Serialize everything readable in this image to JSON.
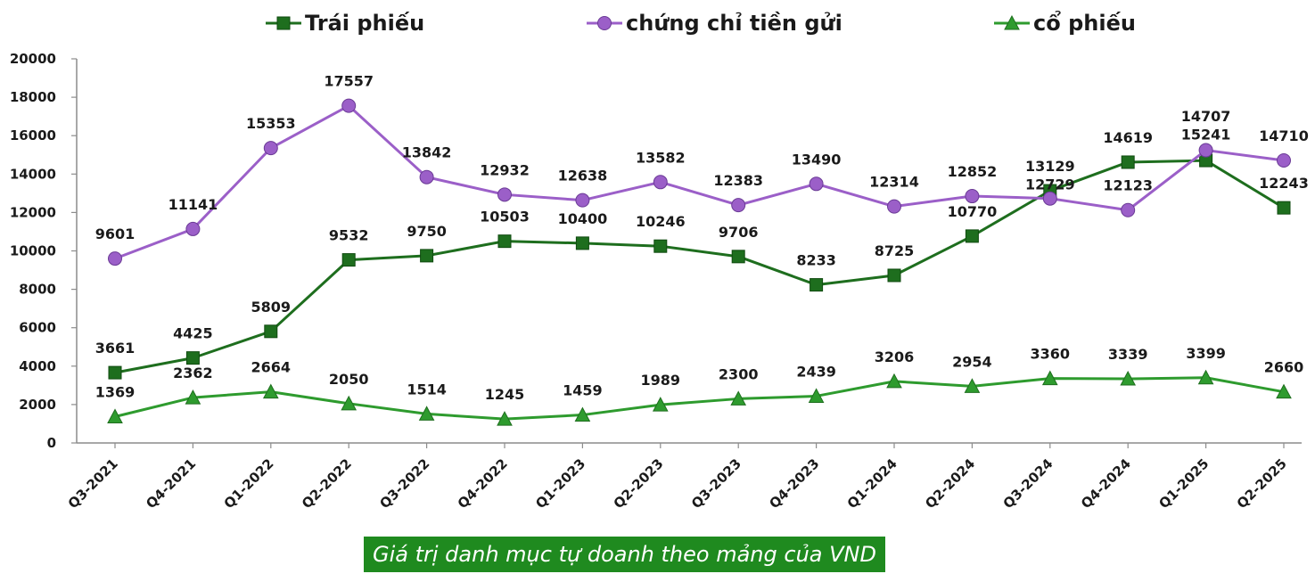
{
  "chart_data": {
    "type": "line",
    "title": "",
    "xlabel": "",
    "ylabel": "",
    "ylim": [
      0,
      20000
    ],
    "yticks": [
      0,
      2000,
      4000,
      6000,
      8000,
      10000,
      12000,
      14000,
      16000,
      18000,
      20000
    ],
    "grid": false,
    "legend_position": "top",
    "categories": [
      "Q3-2021",
      "Q4-2021",
      "Q1-2022",
      "Q2-2022",
      "Q3-2022",
      "Q4-2022",
      "Q1-2023",
      "Q2-2023",
      "Q3-2023",
      "Q4-2023",
      "Q1-2024",
      "Q2-2024",
      "Q3-2024",
      "Q4-2024",
      "Q1-2025",
      "Q2-2025"
    ],
    "series": [
      {
        "name": "Trái phiếu",
        "marker": "square",
        "color": "#1e6e1e",
        "values": [
          3661,
          4425,
          5809,
          9532,
          9750,
          10503,
          10400,
          10246,
          9706,
          8233,
          8725,
          10770,
          13129,
          14619,
          14707,
          12243
        ]
      },
      {
        "name": "chứng chỉ tiền gửi",
        "marker": "circle",
        "color": "#9b5fc8",
        "values": [
          9601,
          11141,
          15353,
          17557,
          13842,
          12932,
          12638,
          13582,
          12383,
          13490,
          12314,
          12852,
          12729,
          12123,
          15241,
          14710
        ]
      },
      {
        "name": "cổ phiếu",
        "marker": "triangle",
        "color": "#2e9b2e",
        "values": [
          1369,
          2362,
          2664,
          2050,
          1514,
          1245,
          1459,
          1989,
          2300,
          2439,
          3206,
          2954,
          3360,
          3339,
          3399,
          2660
        ]
      }
    ]
  },
  "caption": "Giá trị danh mục tự doanh theo mảng của VND"
}
